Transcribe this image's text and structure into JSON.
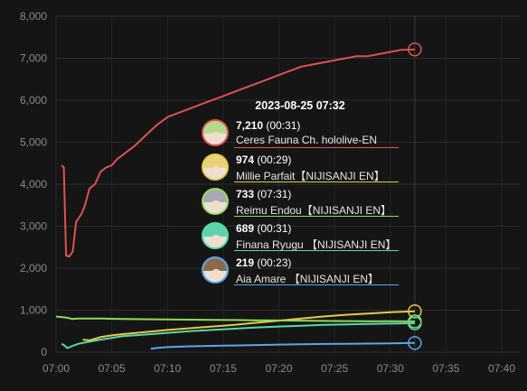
{
  "chart_data": {
    "type": "line",
    "x_ticks": [
      "07:00",
      "07:05",
      "07:10",
      "07:15",
      "07:20",
      "07:25",
      "07:30",
      "07:35",
      "07:40"
    ],
    "y_ticks": [
      "0",
      "1,000",
      "2,000",
      "3,000",
      "4,000",
      "5,000",
      "6,000",
      "7,000",
      "8,000"
    ],
    "ylim": [
      0,
      8000
    ],
    "xlim_minutes": [
      0,
      40
    ],
    "grid": true,
    "cursor_x_minutes": 32.2,
    "series": [
      {
        "name": "Ceres Fauna Ch. hololive-EN",
        "color": "#e0514e",
        "points": [
          [
            0.5,
            4450
          ],
          [
            0.7,
            4400
          ],
          [
            0.9,
            2300
          ],
          [
            1.2,
            2280
          ],
          [
            1.5,
            2400
          ],
          [
            1.8,
            3100
          ],
          [
            2.3,
            3300
          ],
          [
            2.6,
            3500
          ],
          [
            3,
            3900
          ],
          [
            3.5,
            4000
          ],
          [
            4,
            4300
          ],
          [
            4.5,
            4400
          ],
          [
            5,
            4450
          ],
          [
            5.5,
            4600
          ],
          [
            6,
            4700
          ],
          [
            7,
            4900
          ],
          [
            8,
            5150
          ],
          [
            9,
            5400
          ],
          [
            10,
            5600
          ],
          [
            11,
            5700
          ],
          [
            12,
            5800
          ],
          [
            13,
            5900
          ],
          [
            14,
            6000
          ],
          [
            15,
            6100
          ],
          [
            16,
            6200
          ],
          [
            17,
            6300
          ],
          [
            18,
            6400
          ],
          [
            19,
            6500
          ],
          [
            20,
            6600
          ],
          [
            21,
            6700
          ],
          [
            22,
            6800
          ],
          [
            23,
            6850
          ],
          [
            24,
            6900
          ],
          [
            25,
            6950
          ],
          [
            26,
            7000
          ],
          [
            27,
            7050
          ],
          [
            28,
            7050
          ],
          [
            29,
            7100
          ],
          [
            30,
            7150
          ],
          [
            31,
            7200
          ],
          [
            32.2,
            7210
          ]
        ]
      },
      {
        "name": "Millie Parfait 【NIJISANJI EN】",
        "color": "#e6c84b",
        "points": [
          [
            2.4,
            300
          ],
          [
            3,
            280
          ],
          [
            4,
            360
          ],
          [
            5,
            400
          ],
          [
            6,
            430
          ],
          [
            8,
            480
          ],
          [
            10,
            530
          ],
          [
            12,
            570
          ],
          [
            14,
            610
          ],
          [
            16,
            650
          ],
          [
            18,
            700
          ],
          [
            20,
            750
          ],
          [
            22,
            800
          ],
          [
            24,
            850
          ],
          [
            26,
            890
          ],
          [
            28,
            920
          ],
          [
            30,
            950
          ],
          [
            32.2,
            974
          ]
        ]
      },
      {
        "name": "Reimu Endou 【NIJISANJI EN】",
        "color": "#8fdc5a",
        "points": [
          [
            0,
            850
          ],
          [
            1,
            820
          ],
          [
            1.5,
            790
          ],
          [
            2,
            800
          ],
          [
            4,
            800
          ],
          [
            6,
            790
          ],
          [
            8,
            785
          ],
          [
            10,
            780
          ],
          [
            12,
            775
          ],
          [
            14,
            770
          ],
          [
            16,
            765
          ],
          [
            18,
            760
          ],
          [
            20,
            755
          ],
          [
            22,
            750
          ],
          [
            24,
            745
          ],
          [
            26,
            740
          ],
          [
            28,
            738
          ],
          [
            30,
            735
          ],
          [
            32.2,
            733
          ]
        ]
      },
      {
        "name": "Finana Ryugu 【NIJISANJI EN】",
        "color": "#57d9a3",
        "points": [
          [
            0.5,
            200
          ],
          [
            0.8,
            150
          ],
          [
            1,
            100
          ],
          [
            1.5,
            150
          ],
          [
            2,
            200
          ],
          [
            3,
            250
          ],
          [
            4,
            300
          ],
          [
            5,
            340
          ],
          [
            6,
            380
          ],
          [
            8,
            420
          ],
          [
            10,
            460
          ],
          [
            12,
            500
          ],
          [
            14,
            530
          ],
          [
            16,
            560
          ],
          [
            18,
            590
          ],
          [
            20,
            610
          ],
          [
            22,
            630
          ],
          [
            24,
            650
          ],
          [
            26,
            660
          ],
          [
            28,
            670
          ],
          [
            30,
            680
          ],
          [
            32.2,
            689
          ]
        ]
      },
      {
        "name": "Aia Amare 【NIJISANJI EN】",
        "color": "#5aa6e8",
        "points": [
          [
            8.5,
            80
          ],
          [
            9,
            100
          ],
          [
            10,
            120
          ],
          [
            12,
            140
          ],
          [
            14,
            150
          ],
          [
            16,
            160
          ],
          [
            18,
            170
          ],
          [
            20,
            180
          ],
          [
            22,
            190
          ],
          [
            24,
            195
          ],
          [
            26,
            200
          ],
          [
            28,
            205
          ],
          [
            30,
            210
          ],
          [
            32.2,
            219
          ]
        ]
      }
    ]
  },
  "tooltip": {
    "time": "2023-08-25 07:32",
    "rows": [
      {
        "value": "7,210",
        "duration": "(00:31)",
        "name": "Ceres Fauna Ch. hololive-EN",
        "color": "#e0514e",
        "hair": "#b6d98a"
      },
      {
        "value": "974",
        "duration": "(00:29)",
        "name": "Millie Parfait【NIJISANJI EN】",
        "color": "#e6c84b",
        "hair": "#e9d27a"
      },
      {
        "value": "733",
        "duration": "(07:31)",
        "name": "Reimu Endou【NIJISANJI EN】",
        "color": "#8fdc5a",
        "hair": "#a9a9b3"
      },
      {
        "value": "689",
        "duration": "(00:31)",
        "name": "Finana Ryugu 【NIJISANJI EN】",
        "color": "#57d9a3",
        "hair": "#5fd0b0"
      },
      {
        "value": "219",
        "duration": "(00:23)",
        "name": "Aia Amare 【NIJISANJI EN】",
        "color": "#5aa6e8",
        "hair": "#8a6a4e"
      }
    ]
  }
}
